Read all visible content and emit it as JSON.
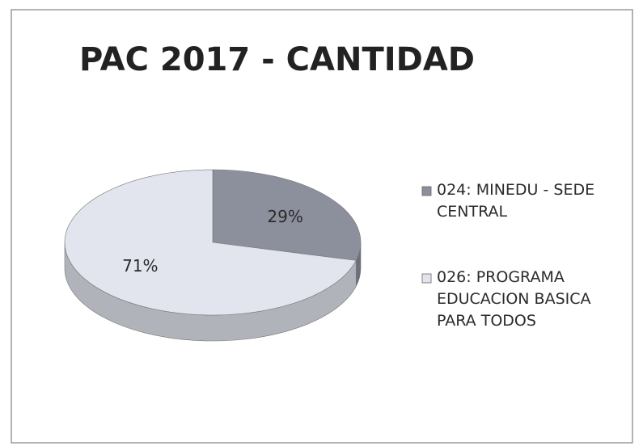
{
  "chart_data": {
    "type": "pie",
    "title": "PAC 2017 - CANTIDAD",
    "categories": [
      "024: MINEDU - SEDE CENTRAL",
      "026: PROGRAMA EDUCACION BASICA PARA TODOS"
    ],
    "values": [
      29,
      71
    ],
    "value_labels": [
      "29%",
      "71%"
    ],
    "colors": [
      "#8c8f9c",
      "#e3e5ee"
    ],
    "legend": "right"
  }
}
